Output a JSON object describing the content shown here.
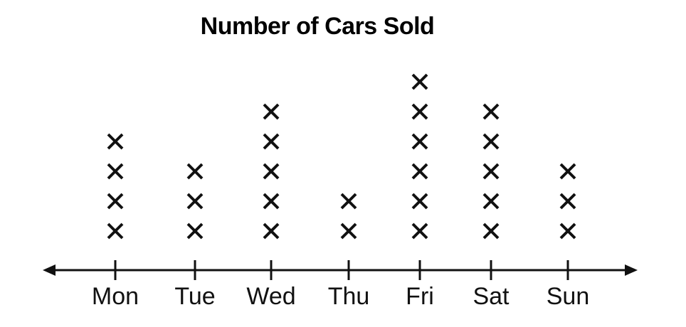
{
  "chart_data": {
    "type": "dot-plot",
    "title": "Number of Cars Sold",
    "xlabel": "",
    "ylabel": "",
    "categories": [
      "Mon",
      "Tue",
      "Wed",
      "Thu",
      "Fri",
      "Sat",
      "Sun"
    ],
    "values": [
      4,
      3,
      5,
      2,
      6,
      5,
      3
    ],
    "marker": "x",
    "grid": false,
    "legend": "none",
    "colors": {
      "ink": "#111111",
      "background": "#ffffff"
    }
  }
}
